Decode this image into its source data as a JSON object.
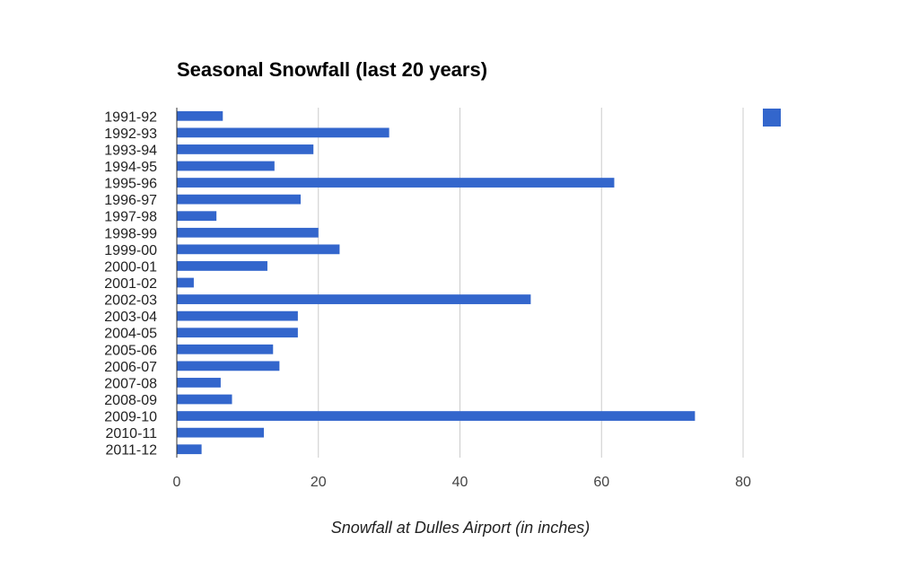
{
  "chart_data": {
    "type": "bar",
    "orientation": "horizontal",
    "title": "Seasonal Snowfall (last 20 years)",
    "xlabel": "Snowfall at Dulles Airport (in inches)",
    "ylabel": "",
    "xlim": [
      0,
      80
    ],
    "xticks": [
      0,
      20,
      40,
      60,
      80
    ],
    "grid": true,
    "legend": "top-right",
    "legend_entries": [
      ""
    ],
    "bar_color": "#3366cc",
    "categories": [
      "1991-92",
      "1992-93",
      "1993-94",
      "1994-95",
      "1995-96",
      "1996-97",
      "1997-98",
      "1998-99",
      "1999-00",
      "2000-01",
      "2001-02",
      "2002-03",
      "2003-04",
      "2004-05",
      "2005-06",
      "2006-07",
      "2007-08",
      "2008-09",
      "2009-10",
      "2010-11",
      "2011-12"
    ],
    "values": [
      6.5,
      30,
      19.3,
      13.8,
      61.8,
      17.5,
      5.6,
      20,
      23,
      12.8,
      2.4,
      50,
      17.1,
      17.1,
      13.6,
      14.5,
      6.2,
      7.8,
      73.2,
      12.3,
      3.5
    ]
  }
}
